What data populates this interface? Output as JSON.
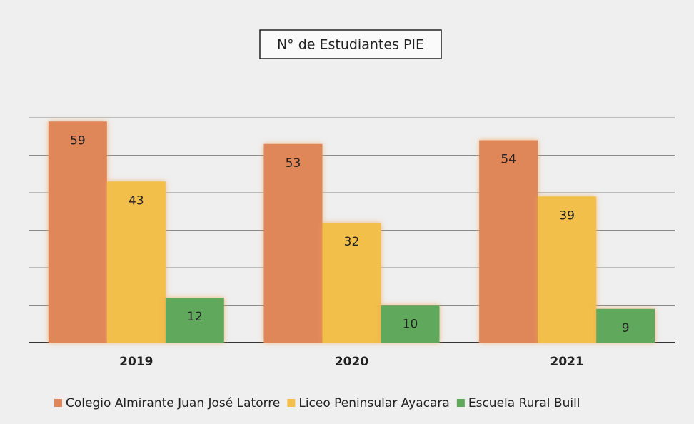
{
  "chart_data": {
    "type": "bar",
    "title": "N° de Estudiantes PIE",
    "categories": [
      "2019",
      "2020",
      "2021"
    ],
    "series": [
      {
        "name": "Colegio Almirante Juan José Latorre",
        "color": "#e0875a",
        "values": [
          59,
          53,
          54
        ]
      },
      {
        "name": "Liceo Peninsular Ayacara",
        "color": "#f2bf4c",
        "values": [
          43,
          32,
          39
        ]
      },
      {
        "name": "Escuela Rural Buill",
        "color": "#5fa85c",
        "values": [
          12,
          10,
          9
        ]
      }
    ],
    "ylim": [
      0,
      60
    ],
    "yticks": [
      0,
      10,
      20,
      30,
      40,
      50,
      60
    ],
    "grid": true,
    "legend": "bottom"
  }
}
